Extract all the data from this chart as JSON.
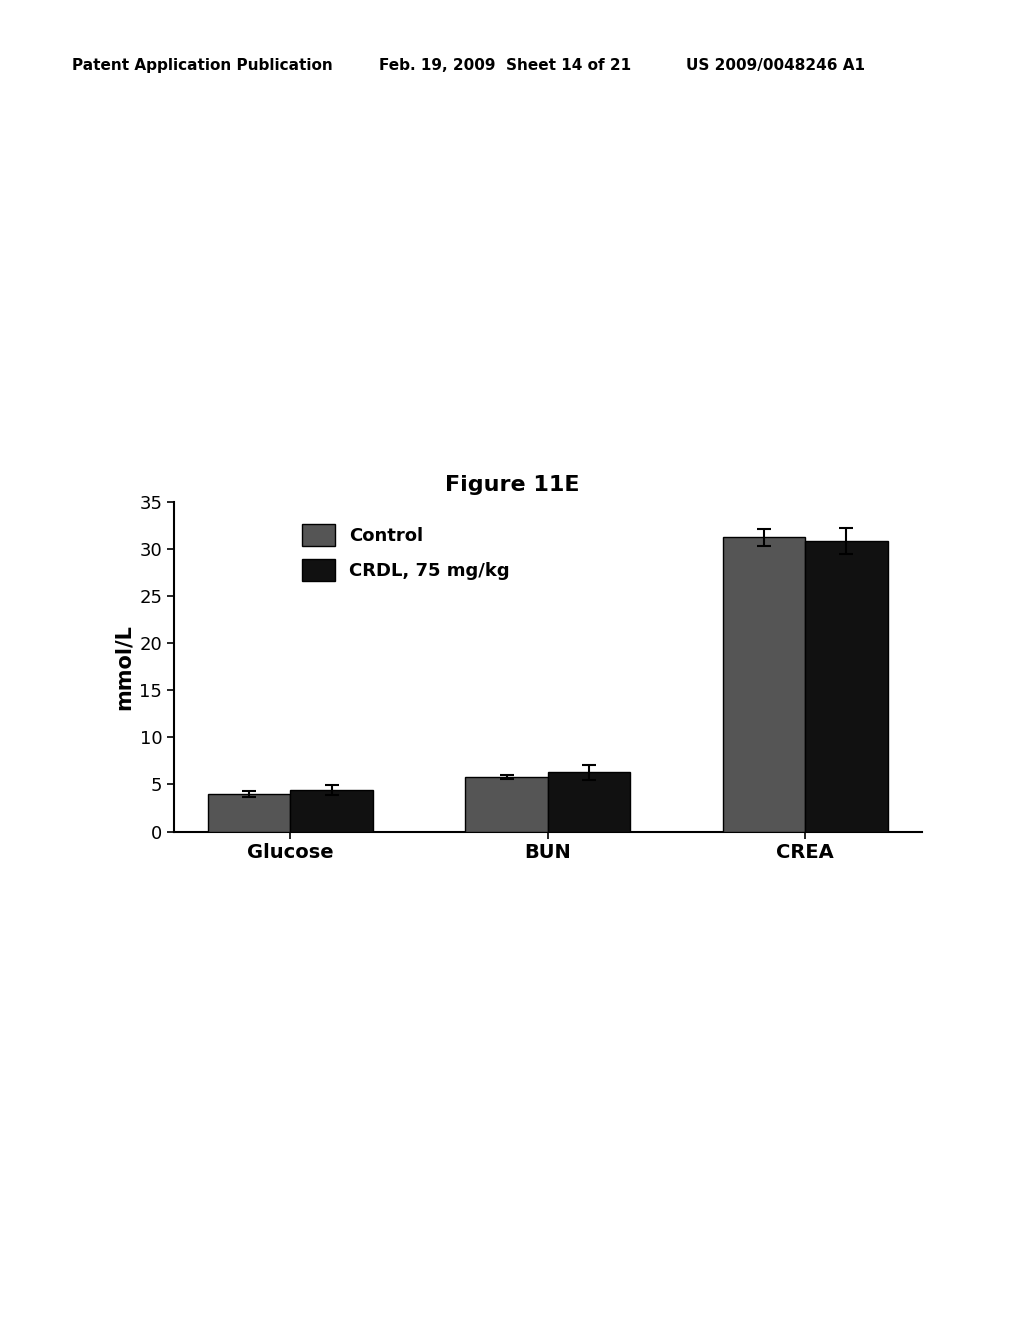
{
  "title": "Figure 11E",
  "header_left": "Patent Application Publication",
  "header_mid": "Feb. 19, 2009  Sheet 14 of 21",
  "header_right": "US 2009/0048246 A1",
  "categories": [
    "Glucose",
    "BUN",
    "CREA"
  ],
  "control_values": [
    4.0,
    5.8,
    31.2
  ],
  "crdl_values": [
    4.4,
    6.3,
    30.8
  ],
  "control_errors": [
    0.35,
    0.25,
    0.9
  ],
  "crdl_errors": [
    0.55,
    0.8,
    1.4
  ],
  "ylabel": "mmol/L",
  "ylim": [
    0,
    35
  ],
  "yticks": [
    0,
    5,
    10,
    15,
    20,
    25,
    30,
    35
  ],
  "legend_control": "Control",
  "legend_crdl": "CRDL, 75 mg/kg",
  "control_color": "#555555",
  "crdl_color": "#111111",
  "bar_width": 0.32,
  "background_color": "#ffffff",
  "title_fontsize": 14,
  "axis_fontsize": 13,
  "tick_fontsize": 12,
  "header_fontsize": 11
}
